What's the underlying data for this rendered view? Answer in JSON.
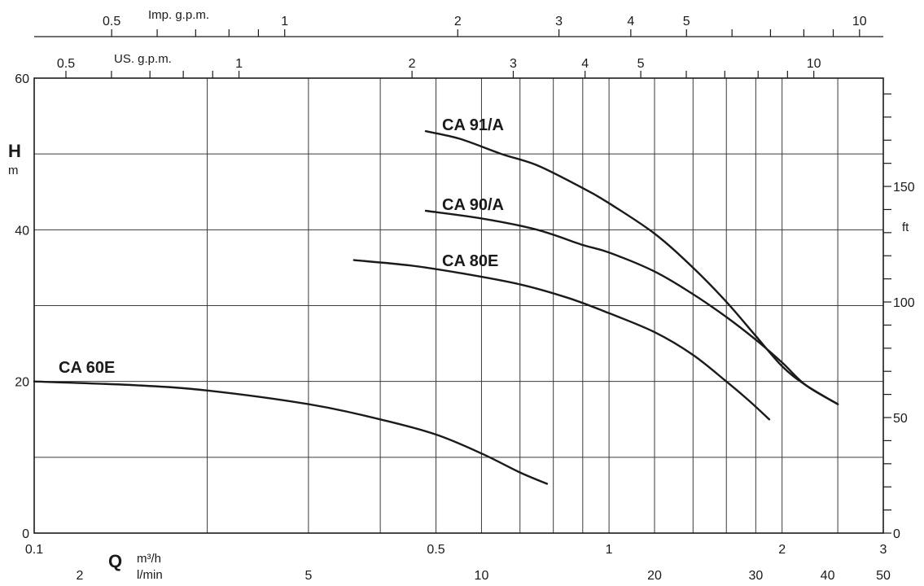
{
  "chart_data": {
    "type": "line",
    "x_scale": "log",
    "xlim": [
      0.1,
      3
    ],
    "ylim": [
      0,
      60
    ],
    "grid": true,
    "y_axis": {
      "symbol": "H",
      "unit": "m",
      "ticks": [
        0,
        20,
        40,
        60
      ],
      "tick_labels": [
        "0",
        "20",
        "40",
        "60"
      ]
    },
    "y_axis_right": {
      "unit": "ft",
      "ticks": [
        0,
        50,
        100,
        150
      ],
      "tick_labels": [
        "0",
        "50",
        "100",
        "150"
      ]
    },
    "x_axis": {
      "symbol": "Q",
      "unit": "m³/h",
      "ticks": [
        0.1,
        0.5,
        1,
        2,
        3
      ],
      "tick_labels": [
        "0.1",
        "0.5",
        "1",
        "2",
        "3"
      ]
    },
    "x_axis_lmin": {
      "unit": "l/min",
      "ticks": [
        2,
        5,
        10,
        20,
        30,
        40,
        50
      ],
      "tick_labels": [
        "2",
        "5",
        "10",
        "20",
        "30",
        "40",
        "50"
      ]
    },
    "x_axis_us": {
      "unit": "US. g.p.m.",
      "ticks": [
        0.5,
        1,
        2,
        3,
        4,
        5,
        10
      ],
      "tick_labels": [
        "0.5",
        "1",
        "2",
        "3",
        "4",
        "5",
        "10"
      ]
    },
    "x_axis_imp": {
      "unit": "Imp. g.p.m.",
      "ticks": [
        0.5,
        1,
        2,
        3,
        4,
        5,
        10
      ],
      "tick_labels": [
        "0.5",
        "1",
        "2",
        "3",
        "4",
        "5",
        "10"
      ]
    },
    "series": [
      {
        "name": "CA 91/A",
        "x": [
          0.48,
          0.55,
          0.65,
          0.75,
          0.9,
          1.0,
          1.2,
          1.4,
          1.6,
          1.8,
          2.0,
          2.2,
          2.5
        ],
        "y": [
          53,
          52,
          50,
          48.5,
          45.5,
          43.5,
          39.5,
          35,
          30.5,
          26,
          22,
          19.5,
          17
        ]
      },
      {
        "name": "CA 90/A",
        "x": [
          0.48,
          0.6,
          0.75,
          0.9,
          1.0,
          1.2,
          1.4,
          1.6,
          1.8,
          2.0,
          2.2,
          2.5
        ],
        "y": [
          42.5,
          41.5,
          40,
          38,
          37,
          34.5,
          31.5,
          28.5,
          25.5,
          22.5,
          19.5,
          17
        ]
      },
      {
        "name": "CA 80E",
        "x": [
          0.36,
          0.45,
          0.55,
          0.7,
          0.85,
          1.0,
          1.2,
          1.4,
          1.6,
          1.75,
          1.9
        ],
        "y": [
          36,
          35.3,
          34.3,
          32.8,
          31,
          29,
          26.5,
          23.5,
          20,
          17.5,
          15
        ]
      },
      {
        "name": "CA 60E",
        "x": [
          0.1,
          0.15,
          0.2,
          0.3,
          0.4,
          0.5,
          0.6,
          0.7,
          0.78
        ],
        "y": [
          20,
          19.5,
          18.8,
          17,
          15,
          13,
          10.5,
          8,
          6.5
        ]
      }
    ]
  }
}
